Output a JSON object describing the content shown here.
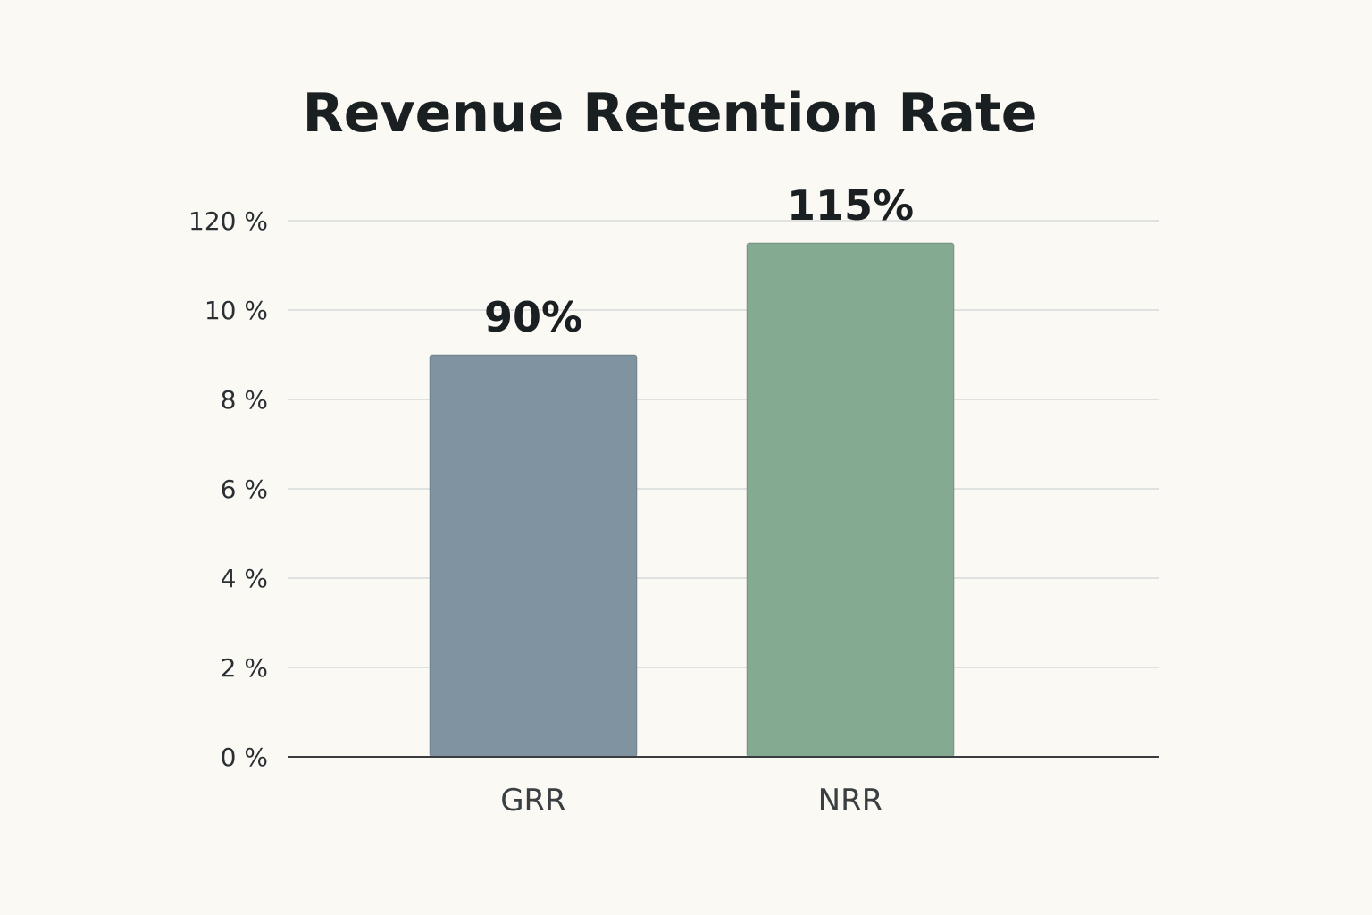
{
  "chart_data": {
    "type": "bar",
    "title": "Revenue Retention Rate",
    "xlabel": "",
    "ylabel": "",
    "categories": [
      "GRR",
      "NRR"
    ],
    "values": [
      90,
      115
    ],
    "data_labels": [
      "90%",
      "115%"
    ],
    "y_tick_labels": [
      "0 %",
      "2 %",
      "4 %",
      "6 %",
      "8 %",
      "10 %",
      "120 %"
    ],
    "ylim": [
      0,
      120
    ],
    "grid": true,
    "legend": "none",
    "colors": [
      "#8093a1",
      "#84aa92"
    ]
  }
}
